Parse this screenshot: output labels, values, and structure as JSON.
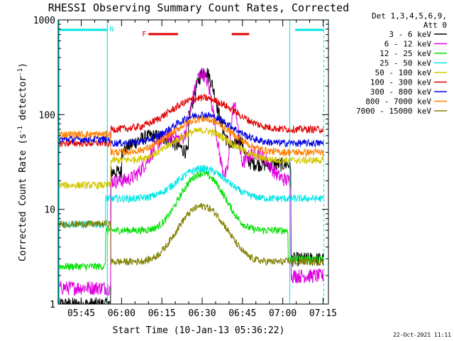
{
  "chart_data": {
    "type": "line",
    "title": "RHESSI Observing Summary Count Rates, Corrected",
    "xlabel": "Start Time (10-Jan-13 05:36:22)",
    "ylabel_main": "Corrected Count Rate (s",
    "ylabel_sup1": "-1",
    "ylabel_mid": " detector",
    "ylabel_sup2": "-1",
    "ylabel_end": ")",
    "yscale": "log",
    "ylim": [
      1,
      1000
    ],
    "xlim_min": [
      36.4,
      137
    ],
    "y_ticks": [
      {
        "value": 1,
        "label": "1"
      },
      {
        "value": 10,
        "label": "10"
      },
      {
        "value": 100,
        "label": "100"
      },
      {
        "value": 1000,
        "label": "1000"
      }
    ],
    "x_ticks": [
      {
        "min": 45,
        "label": "05:45"
      },
      {
        "min": 60,
        "label": "06:00"
      },
      {
        "min": 75,
        "label": "06:15"
      },
      {
        "min": 90,
        "label": "06:30"
      },
      {
        "min": 105,
        "label": "06:45"
      },
      {
        "min": 120,
        "label": "07:00"
      },
      {
        "min": 135,
        "label": "07:15"
      }
    ],
    "legend_header": [
      "Det 1,3,4,5,6,9,",
      "Att 0"
    ],
    "legend_placement": "right",
    "night_flags": {
      "label": "N",
      "color": "#00e5e5",
      "intervals": [
        [
          36.4,
          54.7
        ],
        [
          124.6,
          135.3
        ]
      ]
    },
    "saa_flags": {
      "label": "F",
      "color": "#e00000",
      "intervals": [
        [
          70,
          81
        ],
        [
          101,
          107.5
        ]
      ]
    },
    "night_boundaries": [
      54.7,
      122.6
    ],
    "series": [
      {
        "name": "3 - 6 keV",
        "color": "#000000"
      },
      {
        "name": "6 - 12 keV",
        "color": "#e000e0"
      },
      {
        "name": "12 - 25 keV",
        "color": "#00e000"
      },
      {
        "name": "25 - 50 keV",
        "color": "#00e5e5"
      },
      {
        "name": "50 - 100 keV",
        "color": "#d4c800"
      },
      {
        "name": "100 - 300 keV",
        "color": "#e00000"
      },
      {
        "name": "300 - 800 keV",
        "color": "#0000e0"
      },
      {
        "name": "800 - 7000 keV",
        "color": "#ff8000"
      },
      {
        "name": "7000 - 15000 keV",
        "color": "#808000"
      }
    ],
    "footer_date": "22-Oct-2021 11:11"
  }
}
